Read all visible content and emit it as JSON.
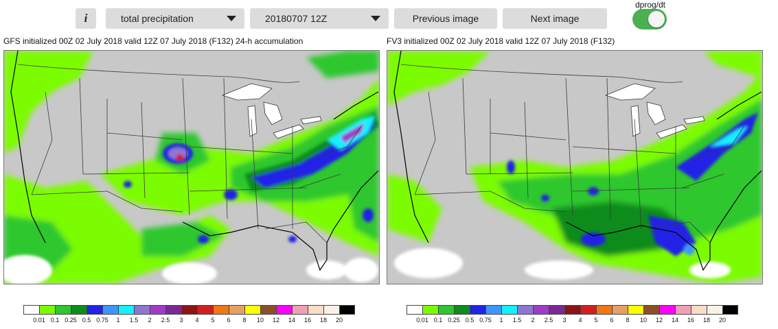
{
  "toolbar": {
    "info_label": "i",
    "variable_select": "total precipitation",
    "time_select": "20180707 12Z",
    "prev_label": "Previous image",
    "next_label": "Next image",
    "toggle_label": "dprog/dt",
    "toggle_on": true,
    "accent_color": "#4caf50"
  },
  "maps": [
    {
      "title": "GFS initialized 00Z 02 July 2018 valid 12Z 07 July 2018 (F132) 24-h accumulation"
    },
    {
      "title": "FV3 initialized 00Z 02 July 2018 valid 12Z 07 July 2018 (F132)"
    }
  ],
  "legend": {
    "colors": [
      "#ffffff",
      "#7cfc00",
      "#2ec72e",
      "#0f8c1e",
      "#2323e6",
      "#3c96ff",
      "#14f0ff",
      "#8c78d2",
      "#a03cc8",
      "#7a2896",
      "#8c1414",
      "#d21e1e",
      "#f07814",
      "#e6a064",
      "#ffff00",
      "#8c5028",
      "#ff00ff",
      "#f0a0b4",
      "#fadcc8",
      "#faf0e6",
      "#000000"
    ],
    "labels": [
      "0.01",
      "0.1",
      "0.25",
      "0.5",
      "0.75",
      "1",
      "1.5",
      "2",
      "2.5",
      "3",
      "4",
      "5",
      "6",
      "8",
      "10",
      "12",
      "14",
      "16",
      "18",
      "20"
    ]
  }
}
